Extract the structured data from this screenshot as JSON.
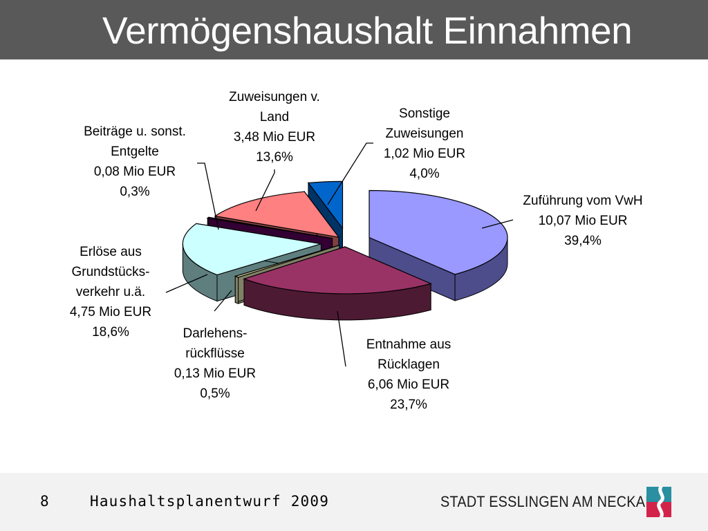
{
  "header": {
    "title": "Vermögenshaushalt Einnahmen"
  },
  "footer": {
    "page_number": "8",
    "document_title": "Haushaltsplanentwurf 2009",
    "organization": "STADT ESSLINGEN AM NECKAR"
  },
  "colors": {
    "title_bar": "#595959",
    "footer_bg": "#f2f2f2",
    "logo_blue": "#2a8fa0",
    "logo_red": "#d2244a"
  },
  "chart_data": {
    "type": "pie",
    "title": "",
    "three_d": true,
    "exploded": true,
    "slices": [
      {
        "label_lines": [
          "Zuführung vom VwH",
          "10,07 Mio EUR",
          "39,4%"
        ],
        "value": 10.07,
        "percent": 39.4,
        "top_color": "#9999ff",
        "side_color": "#4d4d8c"
      },
      {
        "label_lines": [
          "Entnahme aus",
          "Rücklagen",
          "6,06 Mio EUR",
          "23,7%"
        ],
        "value": 6.06,
        "percent": 23.7,
        "top_color": "#993366",
        "side_color": "#4d1a33"
      },
      {
        "label_lines": [
          "Darlehens-",
          "rückflüsse",
          "0,13 Mio EUR",
          "0,5%"
        ],
        "value": 0.13,
        "percent": 0.5,
        "top_color": "#cccc99",
        "side_color": "#808066"
      },
      {
        "label_lines": [
          "Erlöse aus",
          "Grundstücks-",
          "verkehr u.ä.",
          "4,75 Mio EUR",
          "18,6%"
        ],
        "value": 4.75,
        "percent": 18.6,
        "top_color": "#ccffff",
        "side_color": "#5f7f7f"
      },
      {
        "label_lines": [
          "Beiträge u. sonst.",
          "Entgelte",
          "0,08 Mio EUR",
          "0,3%"
        ],
        "value": 0.08,
        "percent": 0.3,
        "top_color": "#660066",
        "side_color": "#330033"
      },
      {
        "label_lines": [
          "Zuweisungen v.",
          "Land",
          "3,48 Mio EUR",
          "13,6%"
        ],
        "value": 3.48,
        "percent": 13.6,
        "top_color": "#ff8080",
        "side_color": "#804040"
      },
      {
        "label_lines": [
          "Sonstige",
          "Zuweisungen",
          "1,02 Mio EUR",
          "4,0%"
        ],
        "value": 1.02,
        "percent": 4.0,
        "top_color": "#0066cc",
        "side_color": "#003366"
      }
    ]
  }
}
